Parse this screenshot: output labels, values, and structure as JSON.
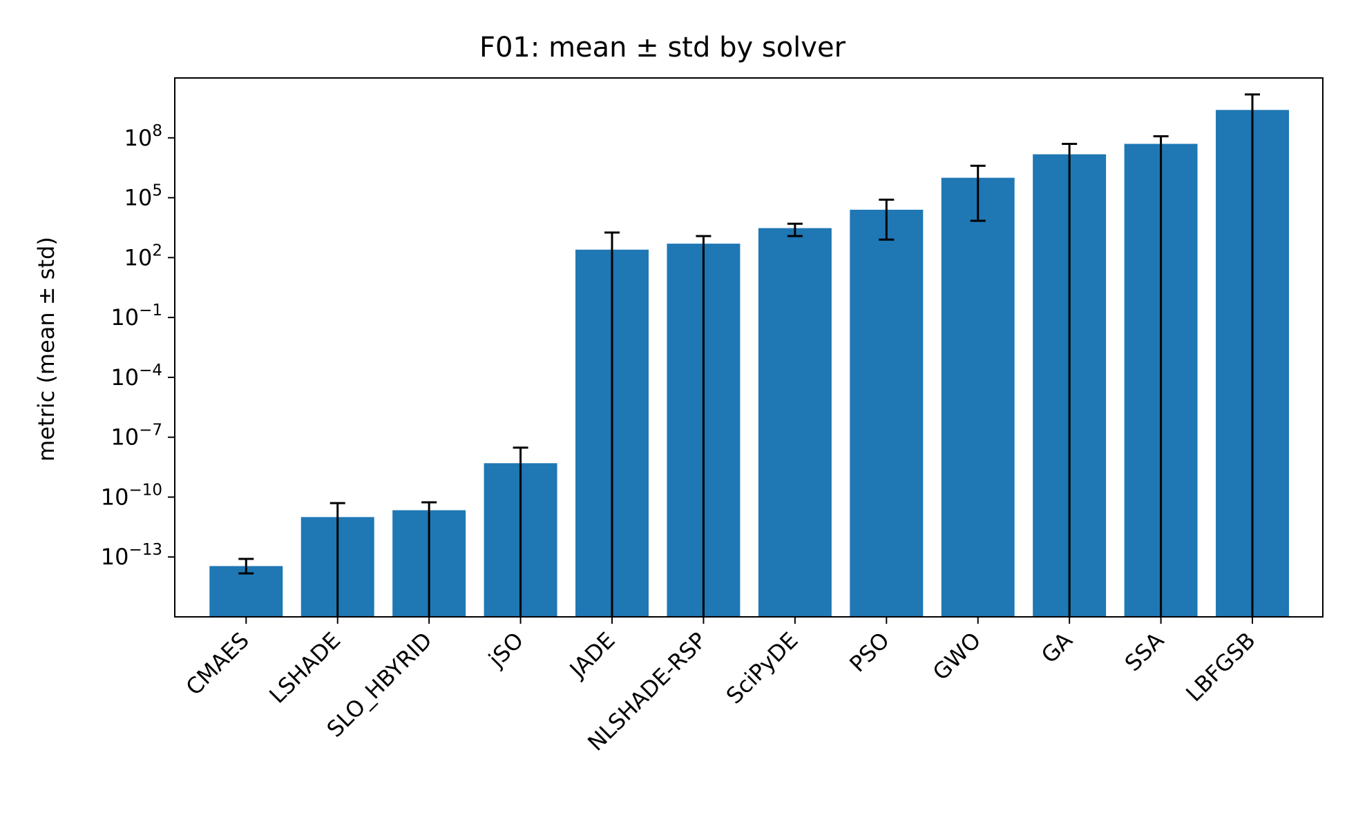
{
  "chart_data": {
    "type": "bar",
    "title": "F01: mean ± std by solver",
    "xlabel": "",
    "ylabel": "metric (mean ± std)",
    "yscale": "log",
    "ylim": [
      1e-16,
      100000000000.0
    ],
    "grid": false,
    "bar_color": "#1f77b4",
    "errorbar_color": "#000000",
    "categories": [
      "CMAES",
      "LSHADE",
      "SLO_HBYRID",
      "jSO",
      "JADE",
      "NLSHADE-RSP",
      "SciPyDE",
      "PSO",
      "GWO",
      "GA",
      "SSA",
      "LBFGSB"
    ],
    "values": [
      3.5e-14,
      1e-11,
      2.2e-11,
      5e-09,
      250,
      500,
      3000,
      25000,
      1000000,
      15000000.0,
      50000000.0,
      2500000000.0
    ],
    "error_low": [
      1.5e-14,
      1e-16,
      1e-16,
      1e-16,
      1e-16,
      1e-16,
      1200,
      800,
      7000,
      1e-16,
      1e-16,
      1e-16
    ],
    "error_high": [
      8e-14,
      5e-11,
      5.5e-11,
      3e-08,
      1800,
      1200,
      5000,
      80000,
      4000000,
      50000000.0,
      120000000.0,
      15000000000.0
    ],
    "yticks": [
      {
        "value": 100000000.0,
        "base": "10",
        "exp": "8"
      },
      {
        "value": 100000.0,
        "base": "10",
        "exp": "5"
      },
      {
        "value": 100.0,
        "base": "10",
        "exp": "2"
      },
      {
        "value": 0.1,
        "base": "10",
        "exp": "−1"
      },
      {
        "value": 0.0001,
        "base": "10",
        "exp": "−4"
      },
      {
        "value": 1e-07,
        "base": "10",
        "exp": "−7"
      },
      {
        "value": 1e-10,
        "base": "10",
        "exp": "−10"
      },
      {
        "value": 1e-13,
        "base": "10",
        "exp": "−13"
      }
    ]
  }
}
